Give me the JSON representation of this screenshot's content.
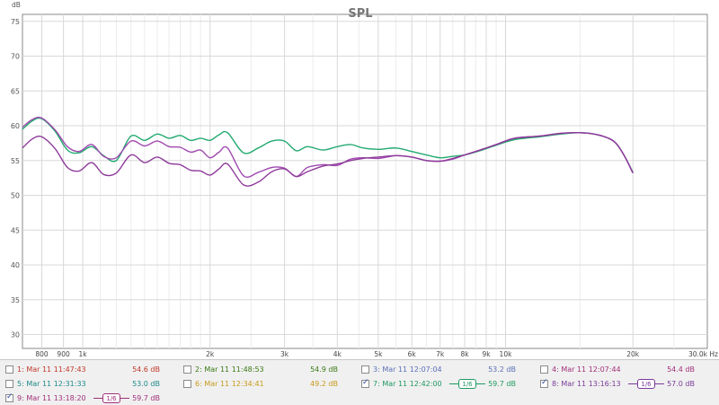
{
  "chart_data": {
    "type": "line",
    "title": "SPL",
    "ylabel": "dB",
    "xlabel": "",
    "x_unit": "Hz",
    "xscale": "log",
    "xlim": [
      720,
      30000
    ],
    "ylim": [
      28,
      76
    ],
    "grid": true,
    "y_ticks": [
      "30",
      "35",
      "40",
      "45",
      "50",
      "55",
      "60",
      "65",
      "70",
      "75"
    ],
    "x_ticks": [
      {
        "v": 800,
        "label": "800"
      },
      {
        "v": 900,
        "label": "900"
      },
      {
        "v": 1000,
        "label": "1k"
      },
      {
        "v": 2000,
        "label": "2k"
      },
      {
        "v": 3000,
        "label": "3k"
      },
      {
        "v": 4000,
        "label": "4k"
      },
      {
        "v": 5000,
        "label": "5k"
      },
      {
        "v": 6000,
        "label": "6k"
      },
      {
        "v": 7000,
        "label": "7k"
      },
      {
        "v": 8000,
        "label": "8k"
      },
      {
        "v": 9000,
        "label": "9k"
      },
      {
        "v": 10000,
        "label": "10k"
      },
      {
        "v": 20000,
        "label": "20k"
      },
      {
        "v": 30000,
        "label": "30.0k Hz"
      }
    ],
    "x_minor_grid": [
      1100,
      1200,
      1300,
      1400,
      1500,
      1600,
      1700,
      1800,
      1900,
      2500,
      3500,
      4500,
      5500,
      6500,
      7500,
      8500,
      9500,
      15000,
      25000
    ],
    "series": [
      {
        "name": "7: Mar 11 12:42:00",
        "color": "#22aa70",
        "x": [
          720,
          760,
          800,
          860,
          920,
          980,
          1050,
          1120,
          1200,
          1300,
          1400,
          1500,
          1600,
          1700,
          1800,
          1900,
          2000,
          2100,
          2200,
          2400,
          2600,
          2800,
          3000,
          3200,
          3400,
          3700,
          4000,
          4300,
          4600,
          5000,
          5500,
          6000,
          6500,
          7000,
          7500,
          8000,
          8800,
          9600,
          10500,
          12000,
          13500,
          15000,
          16500,
          18000,
          19000,
          20000
        ],
        "y": [
          59.5,
          60.7,
          61.0,
          59.2,
          56.5,
          56.1,
          57.0,
          55.7,
          55.0,
          58.5,
          57.9,
          58.8,
          58.2,
          58.6,
          57.9,
          58.2,
          57.9,
          58.7,
          59.0,
          56.1,
          56.8,
          57.8,
          57.8,
          56.4,
          57.0,
          56.5,
          57.0,
          57.3,
          56.8,
          56.6,
          56.8,
          56.3,
          55.8,
          55.4,
          55.6,
          55.8,
          56.5,
          57.3,
          58.0,
          58.4,
          58.8,
          59.0,
          58.7,
          57.8,
          55.9,
          53.3
        ]
      },
      {
        "name": "8: Mar 11 13:16:13",
        "color": "#a04ab0",
        "x": [
          720,
          760,
          800,
          860,
          920,
          980,
          1050,
          1120,
          1200,
          1300,
          1400,
          1500,
          1600,
          1700,
          1800,
          1900,
          2000,
          2100,
          2200,
          2400,
          2600,
          2800,
          3000,
          3200,
          3400,
          3700,
          4000,
          4300,
          4600,
          5000,
          5500,
          6000,
          6500,
          7000,
          7500,
          8000,
          8800,
          9600,
          10500,
          12000,
          13500,
          15000,
          16500,
          18000,
          19000,
          20000
        ],
        "y": [
          59.8,
          60.9,
          61.1,
          59.4,
          57.0,
          56.3,
          57.3,
          55.6,
          55.4,
          57.8,
          57.1,
          57.8,
          57.0,
          56.9,
          56.2,
          56.5,
          55.4,
          56.2,
          56.8,
          52.8,
          53.3,
          54.0,
          53.9,
          52.7,
          54.0,
          54.4,
          54.3,
          55.2,
          55.4,
          55.3,
          55.7,
          55.5,
          55.0,
          54.9,
          55.2,
          55.8,
          56.6,
          57.4,
          58.2,
          58.5,
          58.9,
          59.0,
          58.7,
          57.8,
          55.9,
          53.2
        ]
      },
      {
        "name": "9: Mar 11 13:18:20",
        "color": "#8e3a9a",
        "x": [
          720,
          760,
          800,
          860,
          920,
          980,
          1050,
          1120,
          1200,
          1300,
          1400,
          1500,
          1600,
          1700,
          1800,
          1900,
          2000,
          2100,
          2200,
          2400,
          2600,
          2800,
          3000,
          3200,
          3400,
          3700,
          4000,
          4300,
          4600,
          5000,
          5500,
          6000,
          6500,
          7000,
          7500,
          8000,
          8800,
          9600,
          10500,
          12000,
          13500,
          15000,
          16500,
          18000,
          19000,
          20000
        ],
        "y": [
          56.8,
          58.1,
          58.4,
          56.7,
          54.0,
          53.5,
          54.7,
          53.0,
          53.2,
          55.8,
          54.7,
          55.5,
          54.6,
          54.4,
          53.6,
          53.5,
          52.9,
          53.8,
          54.5,
          51.5,
          51.9,
          53.4,
          53.8,
          52.7,
          53.4,
          54.2,
          54.5,
          55.0,
          55.3,
          55.5,
          55.7,
          55.5,
          55.0,
          54.9,
          55.3,
          55.8,
          56.6,
          57.4,
          58.2,
          58.5,
          58.9,
          59.0,
          58.7,
          57.8,
          55.9,
          53.2
        ]
      }
    ]
  },
  "legend": {
    "items": [
      {
        "name": "1: Mar 11 11:47:43",
        "value": "54.6 dB",
        "checked": false,
        "color": "#c0392b",
        "smoothing": ""
      },
      {
        "name": "2: Mar 11 11:48:53",
        "value": "54.9 dB",
        "checked": false,
        "color": "#3a7a16",
        "smoothing": ""
      },
      {
        "name": "3: Mar 11 12:07:04",
        "value": "53.2 dB",
        "checked": false,
        "color": "#5a6fb8",
        "smoothing": ""
      },
      {
        "name": "4: Mar 11 12:07:44",
        "value": "54.4 dB",
        "checked": false,
        "color": "#a0307a",
        "smoothing": ""
      },
      {
        "name": "5: Mar 11 12:31:33",
        "value": "53.0 dB",
        "checked": false,
        "color": "#1f8a8a",
        "smoothing": ""
      },
      {
        "name": "6: Mar 11 12:34:41",
        "value": "49.2 dB",
        "checked": false,
        "color": "#c89a1a",
        "smoothing": ""
      },
      {
        "name": "7: Mar 11 12:42:00",
        "value": "59.7 dB",
        "checked": true,
        "color": "#1f9a60",
        "smoothing": "1/6"
      },
      {
        "name": "8: Mar 11 13:16:13",
        "value": "57.0 dB",
        "checked": true,
        "color": "#7a3a9a",
        "smoothing": "1/6"
      },
      {
        "name": "9: Mar 11 13:18:20",
        "value": "59.7 dB",
        "checked": true,
        "color": "#a0307a",
        "smoothing": "1/6"
      }
    ]
  }
}
